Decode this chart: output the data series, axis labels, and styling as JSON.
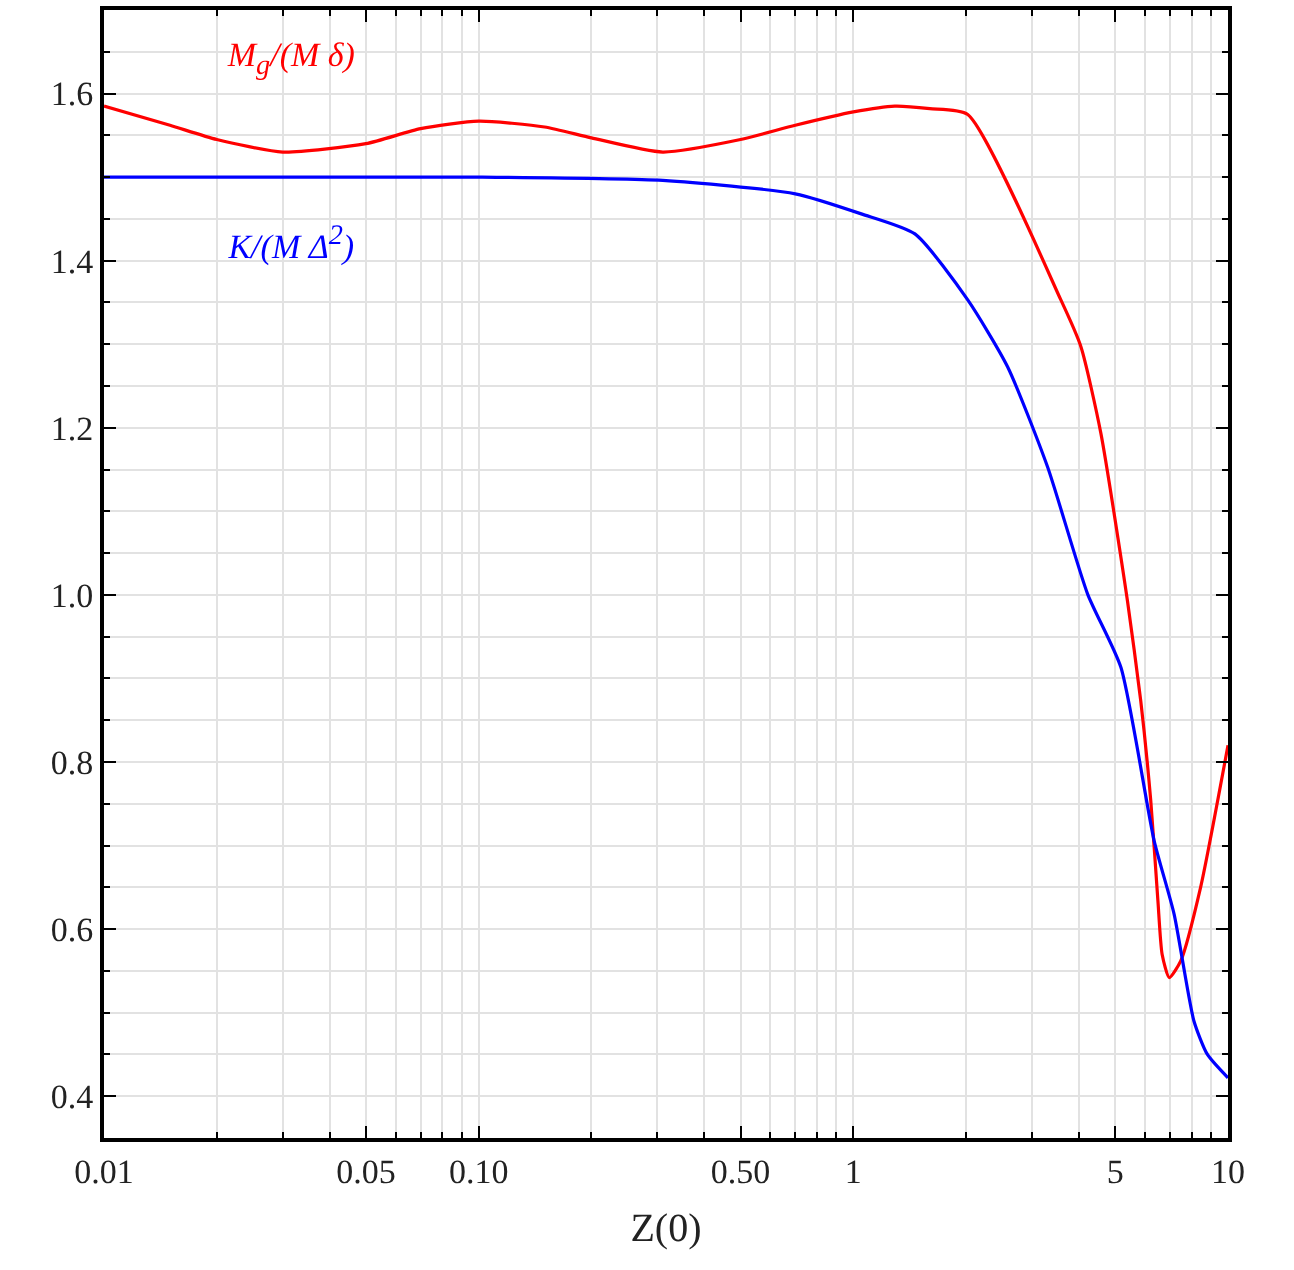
{
  "chart_data": {
    "type": "line",
    "xlabel": "Z(0)",
    "log": "x",
    "grid": true,
    "legend": false,
    "marker": "none",
    "line_style": "solid",
    "xlim": [
      0.01,
      10
    ],
    "ylim": [
      0.35,
      1.7
    ],
    "xticks": [
      0.01,
      {
        "value": 0.02,
        "label": null
      },
      {
        "value": 0.03,
        "label": null
      },
      {
        "value": 0.04,
        "label": null
      },
      0.05,
      {
        "value": 0.06,
        "label": null
      },
      {
        "value": 0.07,
        "label": null
      },
      {
        "value": 0.08,
        "label": null
      },
      {
        "value": 0.09,
        "label": null
      },
      {
        "value": 0.1,
        "label": "0.10"
      },
      {
        "value": 0.2,
        "label": null
      },
      {
        "value": 0.3,
        "label": null
      },
      {
        "value": 0.4,
        "label": null
      },
      {
        "value": 0.5,
        "label": "0.50"
      },
      {
        "value": 0.6,
        "label": null
      },
      {
        "value": 0.7,
        "label": null
      },
      {
        "value": 0.8,
        "label": null
      },
      {
        "value": 0.9,
        "label": null
      },
      1,
      {
        "value": 2,
        "label": null
      },
      {
        "value": 3,
        "label": null
      },
      {
        "value": 4,
        "label": null
      },
      5,
      {
        "value": 6,
        "label": null
      },
      {
        "value": 7,
        "label": null
      },
      {
        "value": 8,
        "label": null
      },
      {
        "value": 9,
        "label": null
      },
      10
    ],
    "yticks": [
      0.4,
      {
        "value": 0.45,
        "label": null
      },
      {
        "value": 0.5,
        "label": null
      },
      {
        "value": 0.55,
        "label": null
      },
      0.6,
      {
        "value": 0.65,
        "label": null
      },
      {
        "value": 0.7,
        "label": null
      },
      {
        "value": 0.75,
        "label": null
      },
      0.8,
      {
        "value": 0.85,
        "label": null
      },
      {
        "value": 0.9,
        "label": null
      },
      {
        "value": 0.95,
        "label": null
      },
      {
        "value": 1.0,
        "label": "1.0"
      },
      {
        "value": 1.05,
        "label": null
      },
      {
        "value": 1.1,
        "label": null
      },
      {
        "value": 1.15,
        "label": null
      },
      1.2,
      {
        "value": 1.25,
        "label": null
      },
      {
        "value": 1.3,
        "label": null
      },
      {
        "value": 1.35,
        "label": null
      },
      1.4,
      {
        "value": 1.45,
        "label": null
      },
      {
        "value": 1.5,
        "label": null
      },
      {
        "value": 1.55,
        "label": null
      },
      1.6,
      {
        "value": 1.65,
        "label": null
      }
    ],
    "series": [
      {
        "name": "M$_{g}$/(M δ)",
        "color": "#ff0000",
        "x": [
          0.01,
          0.015,
          0.02,
          0.03,
          0.05,
          0.07,
          0.1,
          0.15,
          0.2,
          0.31,
          0.5,
          0.7,
          1,
          1.29,
          1.6,
          2.02,
          3.58,
          4.05,
          4.58,
          5.39,
          5.85,
          6.22,
          6.5,
          6.67,
          6.97,
          7.48,
          8.45,
          10
        ],
        "values": [
          1.585,
          1.562,
          1.545,
          1.53,
          1.54,
          1.558,
          1.567,
          1.56,
          1.547,
          1.53,
          1.545,
          1.562,
          1.578,
          1.585,
          1.582,
          1.575,
          1.353,
          1.297,
          1.193,
          0.993,
          0.873,
          0.754,
          0.634,
          0.57,
          0.542,
          0.562,
          0.65,
          0.82
        ]
      },
      {
        "name": "K/(M Δ$^{2}$)",
        "color": "#0000ff",
        "x": [
          0.01,
          0.1,
          0.31,
          0.7,
          1.05,
          1.46,
          2.02,
          2.58,
          3.3,
          4.22,
          5.18,
          6.35,
          7.18,
          8.11,
          8.81,
          10
        ],
        "values": [
          1.5,
          1.5,
          1.496,
          1.48,
          1.456,
          1.432,
          1.353,
          1.273,
          1.153,
          1.001,
          0.913,
          0.706,
          0.618,
          0.49,
          0.45,
          0.422
        ]
      }
    ]
  }
}
